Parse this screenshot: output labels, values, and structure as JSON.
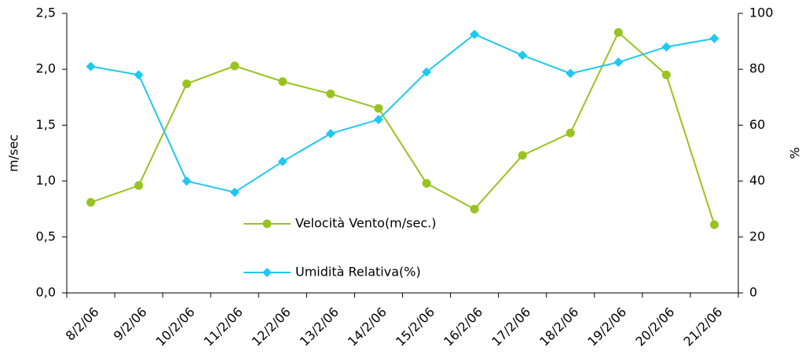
{
  "chart_data": {
    "type": "line",
    "categories": [
      "8/2/06",
      "9/2/06",
      "10/2/06",
      "11/2/06",
      "12/2/06",
      "13/2/06",
      "14/2/06",
      "15/2/06",
      "16/2/06",
      "17/2/06",
      "18/2/06",
      "19/2/06",
      "20/2/06",
      "21/2/06"
    ],
    "series": [
      {
        "name": "Velocità Vento(m/sec.)",
        "color": "#99c31f",
        "marker": "circle",
        "axis": "y",
        "values": [
          0.81,
          0.96,
          1.87,
          2.03,
          1.89,
          1.78,
          1.65,
          0.98,
          0.75,
          1.23,
          1.43,
          2.33,
          1.95,
          0.61
        ]
      },
      {
        "name": "Umidità Relativa(%)",
        "color": "#1fc8f0",
        "marker": "diamond",
        "axis": "y2",
        "values": [
          81,
          78,
          40,
          36,
          47,
          57,
          62,
          79,
          92.5,
          85,
          78.5,
          82.5,
          88,
          91
        ]
      }
    ],
    "ylabel": "m/sec",
    "y2label": "%",
    "ylim": [
      0,
      2.5
    ],
    "yticks": [
      {
        "value": 0,
        "label": "0,0"
      },
      {
        "value": 0.5,
        "label": "0,5"
      },
      {
        "value": 1,
        "label": "1,0"
      },
      {
        "value": 1.5,
        "label": "1,5"
      },
      {
        "value": 2,
        "label": "2,0"
      },
      {
        "value": 2.5,
        "label": "2,5"
      }
    ],
    "y2lim": [
      0,
      100
    ],
    "y2ticks": [
      0,
      20,
      40,
      60,
      80,
      100
    ],
    "grid": false
  }
}
